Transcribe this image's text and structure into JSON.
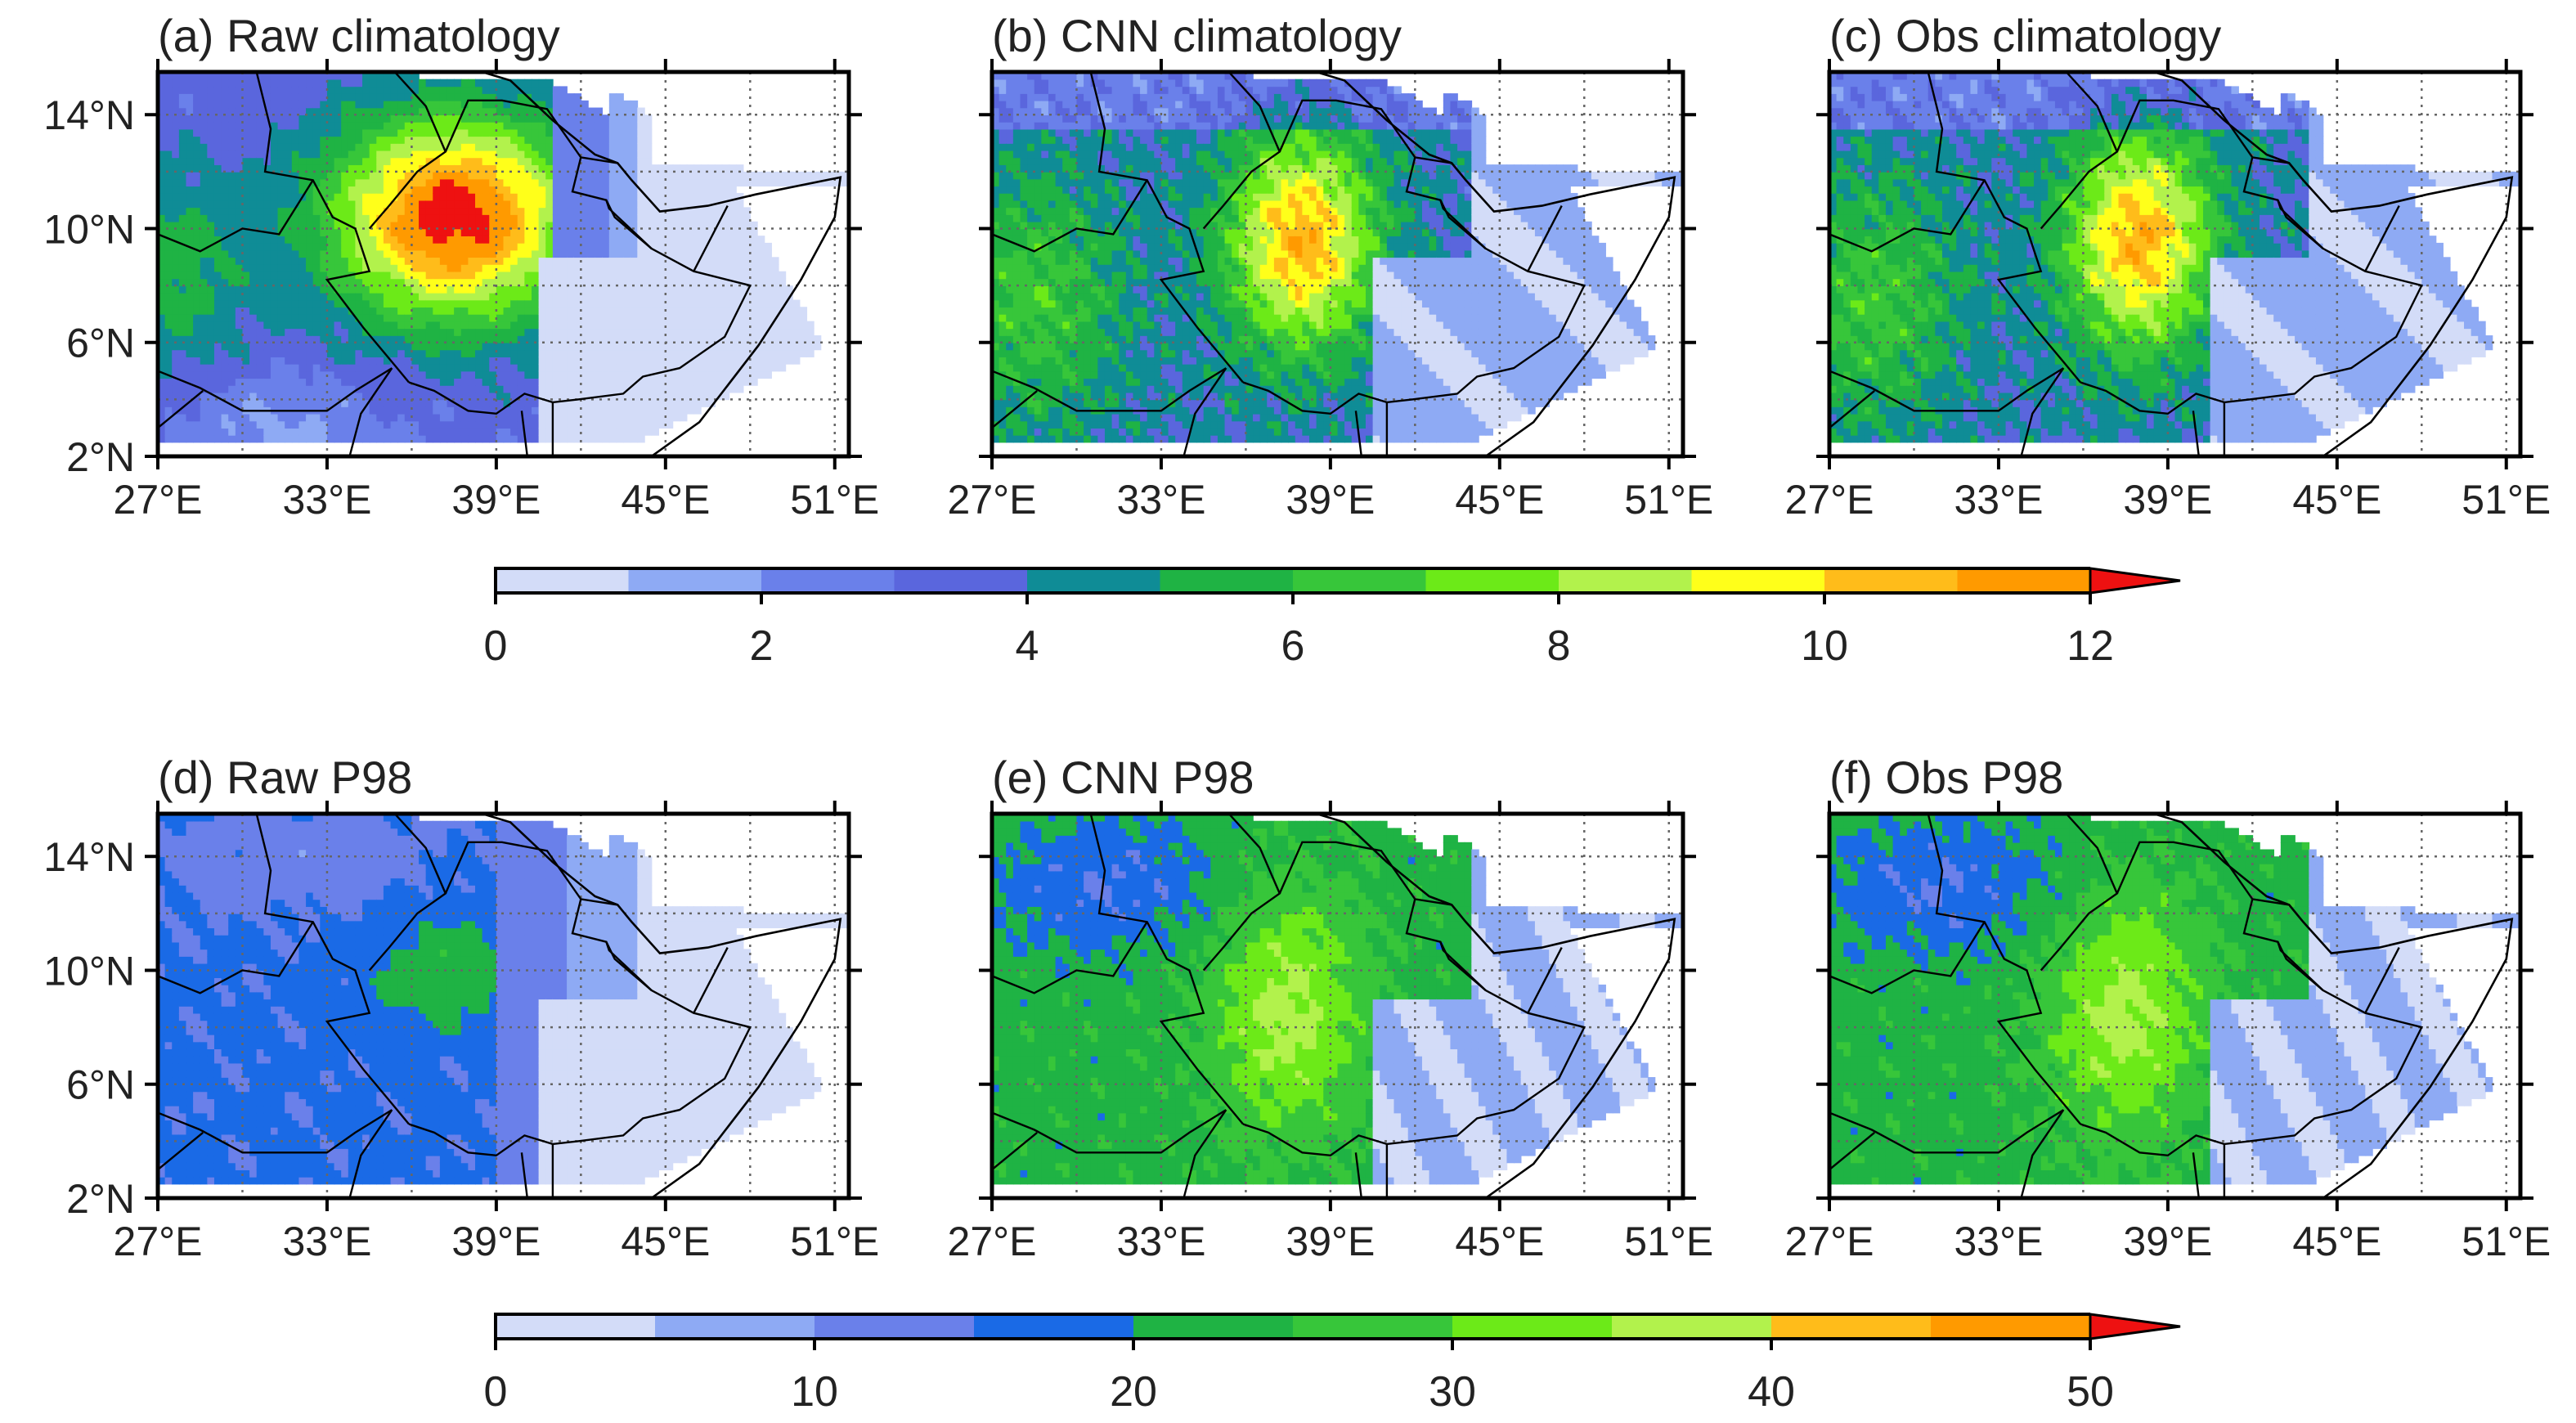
{
  "panels": [
    {
      "id": "a",
      "title": "(a) Raw climatology",
      "field": "raw_clim"
    },
    {
      "id": "b",
      "title": "(b) CNN climatology",
      "field": "cnn_clim"
    },
    {
      "id": "c",
      "title": "(c) Obs climatology",
      "field": "obs_clim"
    },
    {
      "id": "d",
      "title": "(d) Raw P98",
      "field": "raw_p98"
    },
    {
      "id": "e",
      "title": "(e) CNN P98",
      "field": "cnn_p98"
    },
    {
      "id": "f",
      "title": "(f) Obs P98",
      "field": "obs_p98"
    }
  ],
  "axes": {
    "lon_ticks": [
      "27°E",
      "33°E",
      "39°E",
      "45°E",
      "51°E"
    ],
    "lat_ticks": [
      "14°N",
      "10°N",
      "6°N",
      "2°N"
    ],
    "lon_values": [
      27,
      33,
      39,
      45,
      51
    ],
    "lat_values": [
      14,
      10,
      6,
      2
    ],
    "lon_range": [
      27,
      51.5
    ],
    "lat_range": [
      2,
      15.5
    ],
    "grid": "dotted, 3° spacing"
  },
  "colorbars": [
    {
      "id": "clim",
      "ticks": [
        "0",
        "2",
        "4",
        "6",
        "8",
        "10",
        "12"
      ],
      "levels": [
        0,
        1,
        2,
        3,
        4,
        5,
        6,
        7,
        8,
        9,
        10,
        11,
        12
      ],
      "extend": "max"
    },
    {
      "id": "p98",
      "ticks": [
        "0",
        "10",
        "20",
        "30",
        "40",
        "50"
      ],
      "levels": [
        0,
        5,
        10,
        15,
        20,
        25,
        30,
        35,
        40,
        45,
        50
      ],
      "extend": "max"
    }
  ],
  "palette": [
    "#d3dcf8",
    "#8eaaf4",
    "#6a80ea",
    "#5a66dd",
    "#0f8c96",
    "#1fb344",
    "#37c63a",
    "#6cea18",
    "#b2f24c",
    "#ffff1a",
    "#ffbc1a",
    "#ff9a00",
    "#ff6a10",
    "#ee1111"
  ],
  "palette_p98": [
    "#d3dcf8",
    "#8eaaf4",
    "#6a80ea",
    "#1a6ae6",
    "#1fb344",
    "#37c63a",
    "#6cea18",
    "#b2f24c",
    "#ffbc1a",
    "#ff9a00",
    "#ee1111"
  ]
}
